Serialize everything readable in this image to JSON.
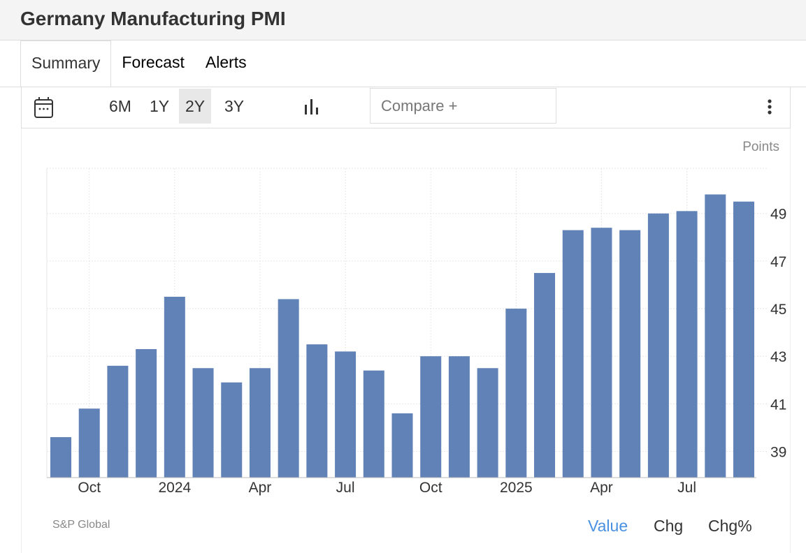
{
  "header": {
    "title": "Germany Manufacturing PMI"
  },
  "tabs": [
    "Summary",
    "Forecast",
    "Alerts"
  ],
  "toolbar": {
    "ranges": [
      "6M",
      "1Y",
      "2Y",
      "3Y"
    ],
    "selected_range": "2Y",
    "compare_placeholder": "Compare +"
  },
  "footer": {
    "source": "S&P Global",
    "modes": [
      "Value",
      "Chg",
      "Chg%"
    ],
    "active_mode": "Value",
    "accent": "#4a90e2"
  },
  "chart_data": {
    "type": "bar",
    "unit_label": "Points",
    "bar_color": "#6082b6",
    "categories": [
      "Sep 2023",
      "Oct 2023",
      "Nov 2023",
      "Dec 2023",
      "Jan 2024",
      "Feb 2024",
      "Mar 2024",
      "Apr 2024",
      "May 2024",
      "Jun 2024",
      "Jul 2024",
      "Aug 2024",
      "Sep 2024",
      "Oct 2024",
      "Nov 2024",
      "Dec 2024",
      "Jan 2025",
      "Feb 2025",
      "Mar 2025",
      "Apr 2025",
      "May 2025",
      "Jun 2025",
      "Jul 2025",
      "Aug 2025",
      "Sep 2025"
    ],
    "values": [
      39.6,
      40.8,
      42.6,
      43.3,
      45.5,
      42.5,
      41.9,
      42.5,
      45.4,
      43.5,
      43.2,
      42.4,
      40.6,
      43.0,
      43.0,
      42.5,
      45.0,
      46.5,
      48.3,
      48.4,
      48.3,
      49.0,
      49.1,
      49.8,
      49.5
    ],
    "x_ticks": [
      {
        "label": "Oct",
        "index": 1
      },
      {
        "label": "2024",
        "index": 4
      },
      {
        "label": "Apr",
        "index": 7
      },
      {
        "label": "Jul",
        "index": 10
      },
      {
        "label": "Oct",
        "index": 13
      },
      {
        "label": "2025",
        "index": 16
      },
      {
        "label": "Apr",
        "index": 19
      },
      {
        "label": "Jul",
        "index": 22
      }
    ],
    "y_ticks": [
      39,
      41,
      43,
      45,
      47,
      49
    ],
    "ylim": [
      37.9,
      50.9
    ],
    "y_axis_position": "right",
    "grid": true
  }
}
